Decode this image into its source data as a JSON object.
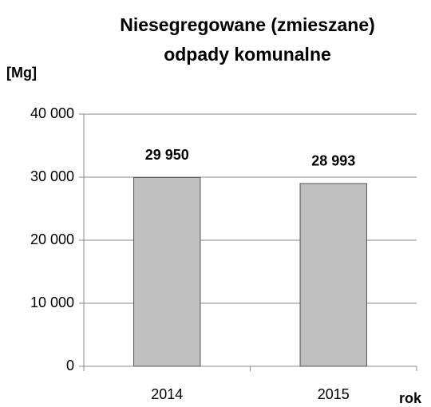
{
  "chart_data": {
    "type": "bar",
    "title": [
      "Niesegregowane (zmieszane)",
      "odpady komunalne"
    ],
    "y_label": "[Mg]",
    "x_label": "rok",
    "categories": [
      "2014",
      "2015"
    ],
    "values": [
      29950,
      28993
    ],
    "value_labels": [
      "29 950",
      "28 993"
    ],
    "color": "#c0c0c0",
    "ylim": [
      0,
      40000
    ],
    "yticks": [
      0,
      {
        "value": 10000,
        "label": "10 000"
      },
      {
        "value": 20000,
        "label": "20 000"
      },
      {
        "value": 30000,
        "label": "30 000"
      },
      {
        "value": 40000,
        "label": "40 000"
      }
    ],
    "grid": true
  }
}
